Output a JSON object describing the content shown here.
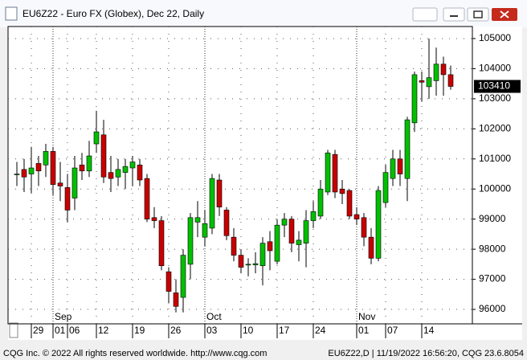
{
  "window": {
    "title": "EU6Z22 - Euro FX (Globex), Dec 22, Daily"
  },
  "footer": {
    "left": "CQG Inc. © 2022 All rights reserved worldwide. http://www.cqg.com",
    "right": "EU6Z22,D | 11/19/2022 16:56:20, CQG 23.6.8054"
  },
  "chart_data": {
    "type": "candlestick",
    "categories": [
      null,
      null,
      "29",
      null,
      null,
      "01",
      null,
      "06",
      null,
      null,
      null,
      "12",
      null,
      null,
      null,
      null,
      "19",
      null,
      null,
      null,
      null,
      "26",
      null,
      null,
      null,
      null,
      "03",
      null,
      null,
      null,
      null,
      "10",
      null,
      null,
      null,
      null,
      "17",
      null,
      null,
      null,
      null,
      "24",
      null,
      null,
      null,
      null,
      null,
      "01",
      null,
      null,
      null,
      "07",
      null,
      null,
      null,
      null,
      "14",
      null,
      null,
      null,
      null
    ],
    "months": [
      "Sep",
      "Oct",
      "Nov"
    ],
    "open": [
      100480,
      100650,
      100500,
      100850,
      100800,
      101250,
      100200,
      100050,
      99700,
      100800,
      100600,
      101500,
      101800,
      100550,
      100400,
      100550,
      100700,
      100800,
      100350,
      99050,
      98950,
      97250,
      96550,
      96400,
      97500,
      98900,
      98400,
      98700,
      100300,
      99300,
      98400,
      97800,
      97480,
      97480,
      97450,
      98250,
      97600,
      98800,
      99000,
      98150,
      98200,
      98950,
      99100,
      99900,
      101150,
      100000,
      99950,
      99150,
      99050,
      98400,
      97700,
      99550,
      100350,
      101000,
      100350,
      102200,
      103600,
      103400,
      103600,
      104150,
      103800
    ],
    "high": [
      100900,
      101000,
      101400,
      101100,
      101500,
      101400,
      100900,
      100500,
      101100,
      101200,
      101600,
      102600,
      102300,
      101100,
      101000,
      101000,
      101100,
      101000,
      100500,
      99400,
      99100,
      97400,
      97000,
      98000,
      99200,
      99600,
      99300,
      100500,
      100500,
      99400,
      98700,
      98000,
      97700,
      97900,
      98400,
      98600,
      99000,
      99200,
      99100,
      98600,
      99300,
      99600,
      100300,
      101300,
      101300,
      100300,
      100000,
      99400,
      99200,
      98700,
      100100,
      100800,
      101300,
      101300,
      102400,
      103900,
      103900,
      105000,
      104700,
      104400,
      104100
    ],
    "low": [
      100100,
      99900,
      99870,
      100100,
      100400,
      99800,
      99600,
      98900,
      99300,
      100300,
      100400,
      101200,
      100200,
      99900,
      100100,
      100000,
      100100,
      100100,
      98900,
      98700,
      97300,
      96200,
      95900,
      95900,
      97000,
      98400,
      98100,
      98500,
      99100,
      98300,
      97600,
      97200,
      97100,
      97200,
      96800,
      97300,
      97500,
      98400,
      97900,
      97600,
      97400,
      98700,
      99000,
      99800,
      99700,
      99500,
      99000,
      98800,
      98100,
      97500,
      97600,
      99400,
      100100,
      100100,
      99600,
      101900,
      102900,
      103000,
      103100,
      103100,
      103300
    ],
    "close": [
      100500,
      100400,
      100700,
      100600,
      101250,
      100150,
      100100,
      99300,
      100700,
      100600,
      101100,
      101900,
      100400,
      100350,
      100650,
      100750,
      100900,
      100300,
      99000,
      98950,
      97450,
      96600,
      96100,
      97800,
      99050,
      99050,
      98850,
      100350,
      99400,
      98450,
      97800,
      97400,
      97500,
      97520,
      98200,
      97950,
      98800,
      99000,
      98200,
      98300,
      98950,
      99250,
      100000,
      101200,
      99900,
      99850,
      99100,
      99000,
      98400,
      97700,
      99950,
      100550,
      101000,
      100500,
      102300,
      103800,
      103550,
      103700,
      104150,
      103800,
      103410
    ],
    "up_color": "#00c000",
    "down_color": "#c80000",
    "ylim": [
      95520,
      105400
    ],
    "yticks": [
      96000,
      97000,
      98000,
      99000,
      100000,
      101000,
      102000,
      103000,
      104000,
      105000
    ],
    "grid": true
  }
}
